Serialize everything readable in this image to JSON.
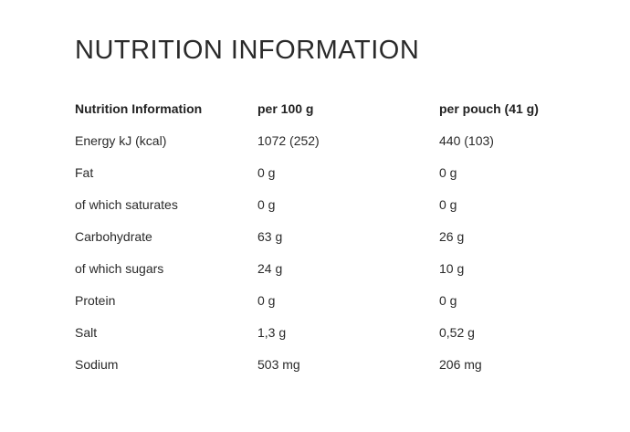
{
  "title": "NUTRITION INFORMATION",
  "table": {
    "headers": [
      "Nutrition Information",
      "per 100 g",
      "per pouch (41 g)"
    ],
    "rows": [
      [
        "Energy kJ (kcal)",
        "1072 (252)",
        "440 (103)"
      ],
      [
        "Fat",
        "0 g",
        "0 g"
      ],
      [
        "of which saturates",
        "0 g",
        "0 g"
      ],
      [
        "Carbohydrate",
        "63 g",
        "26 g"
      ],
      [
        "of which sugars",
        "24 g",
        "10 g"
      ],
      [
        "Protein",
        "0 g",
        "0 g"
      ],
      [
        "Salt",
        "1,3 g",
        "0,52 g"
      ],
      [
        "Sodium",
        "503 mg",
        "206 mg"
      ]
    ]
  }
}
